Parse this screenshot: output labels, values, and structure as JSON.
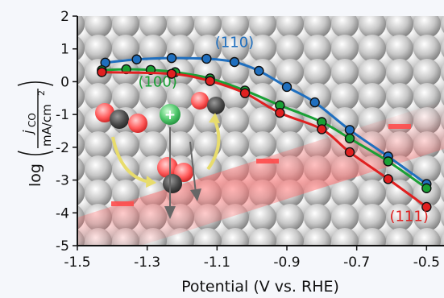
{
  "chart_data": {
    "type": "line",
    "title": "",
    "xlabel": "Potential (V vs. RHE)",
    "ylabel": {
      "prefix": "log",
      "numerator": "j",
      "numerator_sub": "CO",
      "denominator": "mA/cm",
      "denominator_sup": "2"
    },
    "xlim": [
      -1.5,
      -0.45
    ],
    "ylim": [
      -5,
      2
    ],
    "xticks": [
      "-1.5",
      "-1.3",
      "-1.1",
      "-0.9",
      "-0.7",
      "-0.5"
    ],
    "xtick_values": [
      -1.5,
      -1.3,
      -1.1,
      -0.9,
      -0.7,
      -0.5
    ],
    "yticks": [
      "2",
      "1",
      "0",
      "-1",
      "-2",
      "-3",
      "-4",
      "-5"
    ],
    "ytick_values": [
      2,
      1,
      0,
      -1,
      -2,
      -3,
      -4,
      -5
    ],
    "grid": false,
    "series": [
      {
        "name": "(110)",
        "color": "#1f6fbf",
        "x": [
          -1.42,
          -1.33,
          -1.23,
          -1.13,
          -1.05,
          -0.98,
          -0.9,
          -0.82,
          -0.72,
          -0.61,
          -0.5
        ],
        "y": [
          0.58,
          0.68,
          0.72,
          0.7,
          0.6,
          0.33,
          -0.16,
          -0.63,
          -1.47,
          -2.28,
          -3.12
        ]
      },
      {
        "name": "(100)",
        "color": "#1aa035",
        "x": [
          -1.43,
          -1.36,
          -1.29,
          -1.22,
          -1.12,
          -1.02,
          -0.92,
          -0.8,
          -0.72,
          -0.61,
          -0.5
        ],
        "y": [
          0.35,
          0.38,
          0.36,
          0.29,
          0.1,
          -0.27,
          -0.72,
          -1.23,
          -1.73,
          -2.43,
          -3.25
        ]
      },
      {
        "name": "(111)",
        "color": "#e02020",
        "x": [
          -1.43,
          -1.23,
          -1.12,
          -1.02,
          -0.92,
          -0.8,
          -0.72,
          -0.61,
          -0.5
        ],
        "y": [
          0.29,
          0.24,
          0.02,
          -0.35,
          -0.95,
          -1.45,
          -2.15,
          -2.97,
          -3.82
        ]
      }
    ]
  }
}
